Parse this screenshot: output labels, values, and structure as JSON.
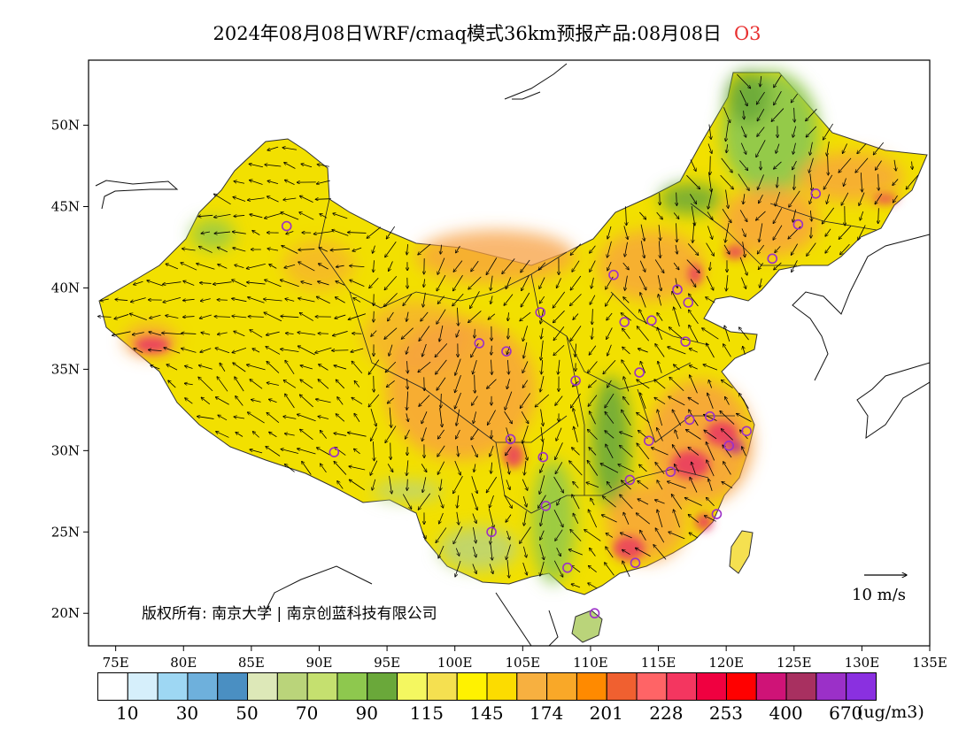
{
  "title": {
    "text": "2024年08月08日WRF/cmaq模式36km预报产品:08月08日",
    "pollutant": "O3"
  },
  "axes": {
    "x_ticks": [
      "75E",
      "80E",
      "85E",
      "90E",
      "95E",
      "100E",
      "105E",
      "110E",
      "115E",
      "120E",
      "125E",
      "130E",
      "135E"
    ],
    "y_ticks": [
      "20N",
      "25N",
      "30N",
      "35N",
      "40N",
      "45N",
      "50N"
    ],
    "lon_range": [
      73,
      135
    ],
    "lat_range": [
      18,
      54
    ]
  },
  "copyright": "版权所有: 南京大学 | 南京创蓝科技有限公司",
  "wind_scale": {
    "label": "10 m/s"
  },
  "legend": {
    "unit": "(ug/m3)",
    "labels": [
      "10",
      "30",
      "50",
      "70",
      "90",
      "115",
      "145",
      "174",
      "201",
      "228",
      "253",
      "400",
      "670"
    ],
    "colors": [
      "#ffffff",
      "#d6effb",
      "#9ed7f3",
      "#6eb0dc",
      "#4a8fc2",
      "#dde8b8",
      "#bad47a",
      "#c5e06f",
      "#8ec84e",
      "#6aa83a",
      "#f4f760",
      "#f5e050",
      "#fff200",
      "#fcdc00",
      "#f7b040",
      "#f9a828",
      "#ff8a00",
      "#f06030",
      "#ff6466",
      "#f43660",
      "#f00040",
      "#ff0000",
      "#cf1377",
      "#a83060",
      "#9b30c8",
      "#8a30e0"
    ]
  },
  "field_colors": {
    "low_green": "#7fb84a",
    "yellow": "#f2e000",
    "orange": "#f7a040",
    "red": "#ea3a60",
    "magenta": "#b82890",
    "station": "#9b30c8"
  },
  "stations": [
    {
      "lon": 87.6,
      "lat": 43.8
    },
    {
      "lon": 91.1,
      "lat": 29.9
    },
    {
      "lon": 101.8,
      "lat": 36.6
    },
    {
      "lon": 103.8,
      "lat": 36.1
    },
    {
      "lon": 106.3,
      "lat": 38.5
    },
    {
      "lon": 111.7,
      "lat": 40.8
    },
    {
      "lon": 112.5,
      "lat": 37.9
    },
    {
      "lon": 114.5,
      "lat": 38.0
    },
    {
      "lon": 116.4,
      "lat": 39.9
    },
    {
      "lon": 117.2,
      "lat": 39.1
    },
    {
      "lon": 117.0,
      "lat": 36.7
    },
    {
      "lon": 113.6,
      "lat": 34.8
    },
    {
      "lon": 108.9,
      "lat": 34.3
    },
    {
      "lon": 104.1,
      "lat": 30.7
    },
    {
      "lon": 106.5,
      "lat": 29.6
    },
    {
      "lon": 106.7,
      "lat": 26.6
    },
    {
      "lon": 102.7,
      "lat": 25.0
    },
    {
      "lon": 108.3,
      "lat": 22.8
    },
    {
      "lon": 110.3,
      "lat": 20.0
    },
    {
      "lon": 113.3,
      "lat": 23.1
    },
    {
      "lon": 112.9,
      "lat": 28.2
    },
    {
      "lon": 114.3,
      "lat": 30.6
    },
    {
      "lon": 115.9,
      "lat": 28.7
    },
    {
      "lon": 117.3,
      "lat": 31.9
    },
    {
      "lon": 118.8,
      "lat": 32.1
    },
    {
      "lon": 120.2,
      "lat": 30.3
    },
    {
      "lon": 121.5,
      "lat": 31.2
    },
    {
      "lon": 119.3,
      "lat": 26.1
    },
    {
      "lon": 123.4,
      "lat": 41.8
    },
    {
      "lon": 125.3,
      "lat": 43.9
    },
    {
      "lon": 126.6,
      "lat": 45.8
    }
  ]
}
